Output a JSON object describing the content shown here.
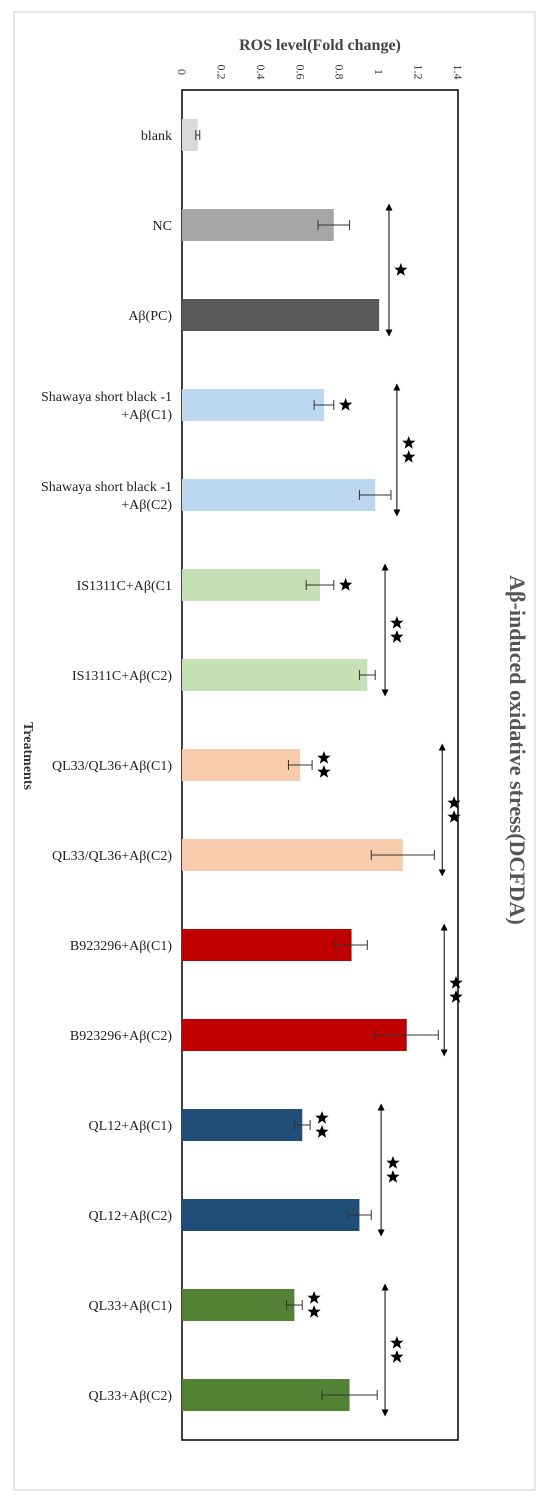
{
  "chart_data": {
    "type": "bar",
    "orientation": "horizontal",
    "title": "Aβ-induced oxidative stress(DCFDA)",
    "xlabel": "ROS level(Fold change)",
    "ylabel": "Treatments",
    "xlim": [
      0,
      1.4
    ],
    "ticks": [
      "0",
      "0.2",
      "0.4",
      "0.6",
      "0.8",
      "1",
      "1.2",
      "1.4"
    ],
    "categories": [
      "blank",
      "NC",
      "Aβ(PC)",
      "Shawaya short black -1\n+Aβ(C1)",
      "Shawaya short black -1\n+Aβ(C2)",
      "IS1311C+Aβ(C1",
      "IS1311C+Aβ(C2)",
      "QL33/QL36+Aβ(C1)",
      "QL33/QL36+Aβ(C2)",
      "B923296+Aβ(C1)",
      "B923296+Aβ(C2)",
      "QL12+Aβ(C1)",
      "QL12+Aβ(C2)",
      "QL33+Aβ(C1)",
      "QL33+Aβ(C2)"
    ],
    "values": [
      0.08,
      0.77,
      1.0,
      0.72,
      0.98,
      0.7,
      0.94,
      0.6,
      1.12,
      0.86,
      1.14,
      0.61,
      0.9,
      0.57,
      0.85
    ],
    "errors": [
      0.01,
      0.08,
      0.0,
      0.05,
      0.08,
      0.07,
      0.04,
      0.06,
      0.16,
      0.08,
      0.16,
      0.04,
      0.06,
      0.04,
      0.14
    ],
    "colors": [
      "#d9d9d9",
      "#a6a6a6",
      "#595959",
      "#bdd7ee",
      "#bdd7ee",
      "#c5e0b4",
      "#c5e0b4",
      "#f8cbad",
      "#f8cbad",
      "#c00000",
      "#c00000",
      "#1f4e79",
      "#1f4e79",
      "#548235",
      "#548235"
    ],
    "bar_stars": [
      {
        "index": 3,
        "x": 0.83,
        "count": 1
      },
      {
        "index": 5,
        "x": 0.83,
        "count": 1
      },
      {
        "index": 7,
        "x": 0.72,
        "count": 2
      },
      {
        "index": 11,
        "x": 0.71,
        "count": 2
      },
      {
        "index": 13,
        "x": 0.67,
        "count": 2
      }
    ],
    "comparisons": [
      {
        "from": 1,
        "to": 2,
        "x": 1.05,
        "stars": 1,
        "star_x": 1.11
      },
      {
        "from": 3,
        "to": 4,
        "x": 1.09,
        "stars": 2,
        "star_x": 1.15
      },
      {
        "from": 5,
        "to": 6,
        "x": 1.03,
        "stars": 2,
        "star_x": 1.09
      },
      {
        "from": 7,
        "to": 8,
        "x": 1.32,
        "stars": 2,
        "star_x": 1.38
      },
      {
        "from": 9,
        "to": 10,
        "x": 1.33,
        "stars": 2,
        "star_x": 1.39
      },
      {
        "from": 11,
        "to": 12,
        "x": 1.01,
        "stars": 2,
        "star_x": 1.07
      },
      {
        "from": 13,
        "to": 14,
        "x": 1.03,
        "stars": 2,
        "star_x": 1.09
      }
    ],
    "grid": false,
    "legend": "none"
  }
}
